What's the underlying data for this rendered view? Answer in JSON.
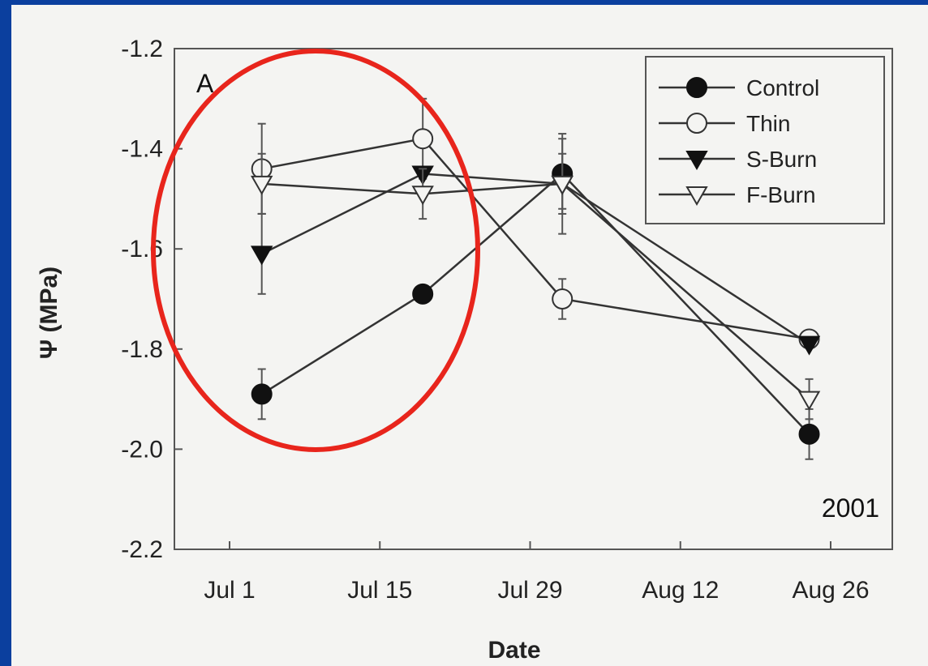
{
  "chart_data": {
    "type": "line",
    "panel_label": "A",
    "annotation": "2001",
    "xlabel": "Date",
    "ylabel": "Ψ (MPa)",
    "x_tick_labels": [
      "Jul 1",
      "Jul 15",
      "Jul 29",
      "Aug 12",
      "Aug 26"
    ],
    "x_tick_dates": [
      "2001-07-01",
      "2001-07-15",
      "2001-07-29",
      "2001-08-12",
      "2001-08-26"
    ],
    "y_tick_labels": [
      "-1.2",
      "-1.4",
      "-1.6",
      "-1.8",
      "-2.0",
      "-2.2"
    ],
    "ylim": [
      -2.2,
      -1.2
    ],
    "grid": false,
    "legend_position": "top-right",
    "x": [
      "2001-07-04",
      "2001-07-19",
      "2001-08-01",
      "2001-08-24"
    ],
    "series": [
      {
        "name": "Control",
        "marker": "filled-circle",
        "values": [
          -1.89,
          -1.69,
          -1.45,
          -1.97
        ],
        "errors": [
          0.05,
          0.0,
          0.07,
          0.05
        ]
      },
      {
        "name": "Thin",
        "marker": "open-circle",
        "values": [
          -1.44,
          -1.38,
          -1.7,
          -1.78
        ],
        "errors": [
          0.09,
          0.08,
          0.04,
          0.0
        ]
      },
      {
        "name": "S-Burn",
        "marker": "filled-triangle-down",
        "values": [
          -1.61,
          -1.45,
          -1.47,
          -1.79
        ],
        "errors": [
          0.08,
          0.0,
          0.1,
          0.0
        ]
      },
      {
        "name": "F-Burn",
        "marker": "open-triangle-down",
        "values": [
          -1.47,
          -1.49,
          -1.47,
          -1.9
        ],
        "errors": [
          0.06,
          0.05,
          0.06,
          0.04
        ]
      }
    ],
    "highlight": {
      "shape": "ellipse",
      "color": "#e8251c"
    }
  }
}
